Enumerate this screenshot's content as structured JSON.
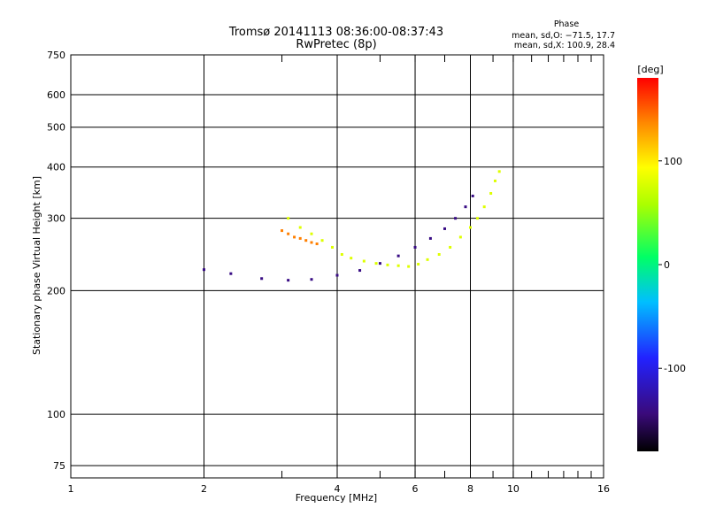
{
  "chart_data": {
    "type": "scatter",
    "title": "Tromsø 20141113 08:36:00-08:37:43",
    "subtitle": "RwPretec (8p)",
    "xlabel": "Frequency [MHz]",
    "ylabel": "Stationary phase Virtual Height [km]",
    "x_scale": "log",
    "y_scale": "log",
    "xlim": [
      1,
      16
    ],
    "ylim": [
      70,
      750
    ],
    "x_ticks": [
      1,
      2,
      4,
      6,
      8,
      10,
      16
    ],
    "y_ticks": [
      75,
      100,
      200,
      300,
      400,
      500,
      600,
      750
    ],
    "grid": true,
    "stats": {
      "title": "Phase",
      "line1": "mean, sd,O: −71.5, 17.7",
      "line2": "mean, sd,X: 100.9, 28.4"
    },
    "colorbar": {
      "label": "[deg]",
      "min": -180,
      "max": 180,
      "ticks": [
        100,
        0,
        -100
      ]
    },
    "series": [
      {
        "points": [
          [
            3.1,
            300
          ],
          [
            3.3,
            285
          ],
          [
            3.5,
            275
          ],
          [
            3.7,
            265
          ],
          [
            3.9,
            255
          ],
          [
            4.1,
            245
          ],
          [
            4.3,
            240
          ],
          [
            4.6,
            236
          ],
          [
            4.9,
            233
          ],
          [
            5.2,
            231
          ],
          [
            5.5,
            230
          ],
          [
            5.8,
            229
          ],
          [
            6.1,
            232
          ],
          [
            6.4,
            238
          ],
          [
            6.8,
            245
          ],
          [
            7.2,
            255
          ],
          [
            7.6,
            270
          ],
          [
            8.0,
            285
          ],
          [
            8.3,
            300
          ],
          [
            8.6,
            320
          ],
          [
            8.9,
            345
          ],
          [
            9.1,
            370
          ],
          [
            9.3,
            390
          ]
        ],
        "phase": 80
      },
      {
        "points": [
          [
            2.0,
            225
          ],
          [
            2.3,
            220
          ],
          [
            2.7,
            214
          ],
          [
            3.1,
            212
          ],
          [
            3.5,
            213
          ],
          [
            4.0,
            218
          ],
          [
            4.5,
            224
          ],
          [
            5.0,
            233
          ],
          [
            5.5,
            243
          ],
          [
            6.0,
            255
          ],
          [
            6.5,
            268
          ],
          [
            7.0,
            283
          ],
          [
            7.4,
            300
          ],
          [
            7.8,
            320
          ],
          [
            8.1,
            340
          ]
        ],
        "phase": -140
      },
      {
        "points": [
          [
            3.0,
            280
          ],
          [
            3.1,
            275
          ],
          [
            3.2,
            270
          ],
          [
            3.3,
            268
          ],
          [
            3.4,
            265
          ],
          [
            3.5,
            262
          ],
          [
            3.6,
            260
          ]
        ],
        "phase": 140
      }
    ]
  }
}
